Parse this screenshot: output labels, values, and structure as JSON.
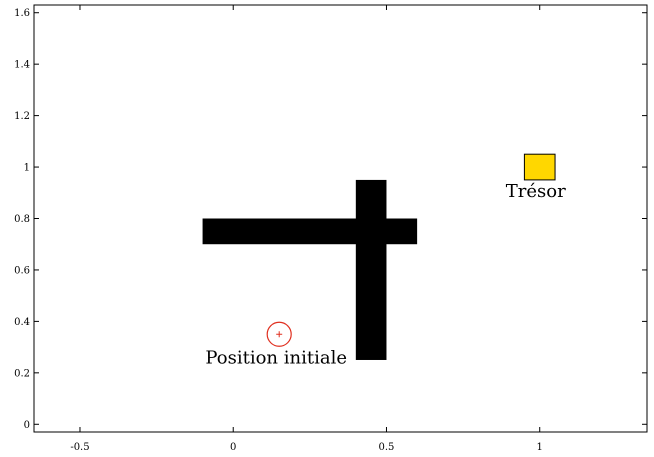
{
  "chart_data": {
    "type": "scatter",
    "title": "",
    "xlabel": "",
    "ylabel": "",
    "xlim": [
      -0.65,
      1.35
    ],
    "ylim": [
      -0.03,
      1.63
    ],
    "grid": false,
    "legend": "none",
    "xticks": [
      -0.5,
      0,
      0.5,
      1
    ],
    "xtick_labels": [
      "-0.5",
      "0",
      "0.5",
      "1"
    ],
    "yticks": [
      0,
      0.2,
      0.4,
      0.6,
      0.8,
      1,
      1.2,
      1.4,
      1.6
    ],
    "ytick_labels": [
      "0",
      "0.2",
      "0.4",
      "0.6",
      "0.8",
      "1",
      "1.2",
      "1.4",
      "1.6"
    ],
    "obstacles": [
      {
        "x0": -0.1,
        "x1": 0.6,
        "y0": 0.7,
        "y1": 0.8
      },
      {
        "x0": 0.4,
        "x1": 0.5,
        "y0": 0.25,
        "y1": 0.95
      }
    ],
    "obstacle_color": "#000000",
    "treasure": {
      "x0": 0.95,
      "x1": 1.05,
      "y0": 0.95,
      "y1": 1.05,
      "color": "#ffd700",
      "label": "Trésor"
    },
    "start": {
      "x": 0.15,
      "y": 0.35,
      "color": "#e03020",
      "label": "Position initiale"
    }
  }
}
